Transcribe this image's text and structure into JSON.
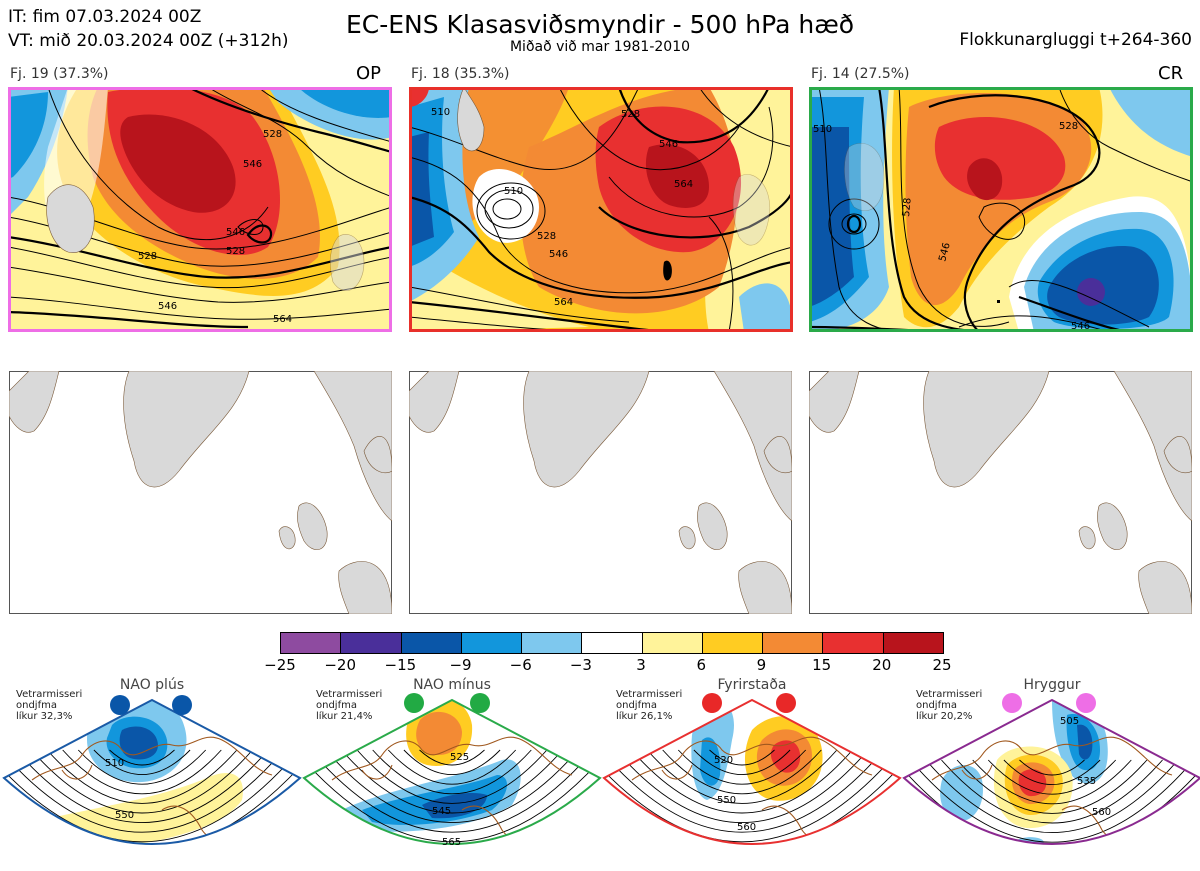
{
  "header": {
    "init_time": "IT: fim 07.03.2024 00Z",
    "valid_time": "VT: mið 20.03.2024 00Z  (+312h)",
    "title": "EC-ENS Klasasviðsmyndir - 500 hPa hæð",
    "subtitle": "Miðað við mar 1981-2010",
    "window": "Flokkunargluggi t+264-360"
  },
  "panels": [
    {
      "label": "Fj. 19 (37.3%)",
      "tag": "OP",
      "border": "#ee6ee6",
      "contour_labels": [
        "528",
        "546",
        "546",
        "528",
        "546",
        "564",
        "528"
      ]
    },
    {
      "label": "Fj. 18 (35.3%)",
      "tag": "",
      "border": "#e8302a",
      "contour_labels": [
        "510",
        "528",
        "546",
        "564",
        "528",
        "546",
        "564",
        "510"
      ]
    },
    {
      "label": "Fj. 14 (27.5%)",
      "tag": "CR",
      "border": "#2aaa4a",
      "contour_labels": [
        "510",
        "528",
        "528",
        "546",
        "546"
      ]
    }
  ],
  "colorbar": {
    "ticks": [
      "−25",
      "−20",
      "−15",
      "−9",
      "−6",
      "−3",
      "3",
      "6",
      "9",
      "15",
      "20",
      "25"
    ],
    "colors": [
      "#8e4ba0",
      "#4a2f9a",
      "#0a56a8",
      "#1296dc",
      "#7ec8ee",
      "#ffffff",
      "#fff39a",
      "#ffcc22",
      "#f38a34",
      "#e83030",
      "#b8141c"
    ]
  },
  "regimes": [
    {
      "title": "NAO plús",
      "note": [
        "Vetrarmisseri",
        "ondjfma",
        "líkur 32,3%"
      ],
      "border": "#1a5aa6",
      "dot": "#0a56a8",
      "labels": [
        "510",
        "550"
      ]
    },
    {
      "title": "NAO mínus",
      "note": [
        "Vetrarmisseri",
        "ondjfma",
        "líkur 21,4%"
      ],
      "border": "#2aaa4a",
      "dot": "#22aa44",
      "labels": [
        "525",
        "545",
        "565"
      ]
    },
    {
      "title": "Fyrirstaða",
      "note": [
        "Vetrarmisseri",
        "ondjfma",
        "líkur 26,1%"
      ],
      "border": "#e83030",
      "dot": "#e82828",
      "labels": [
        "520",
        "550",
        "560"
      ]
    },
    {
      "title": "Hryggur",
      "note": [
        "Vetrarmisseri",
        "ondjfma",
        "líkur 20,2%"
      ],
      "border": "#8a2a90",
      "dot": "#ee6ee6",
      "labels": [
        "505",
        "535",
        "560"
      ]
    }
  ]
}
